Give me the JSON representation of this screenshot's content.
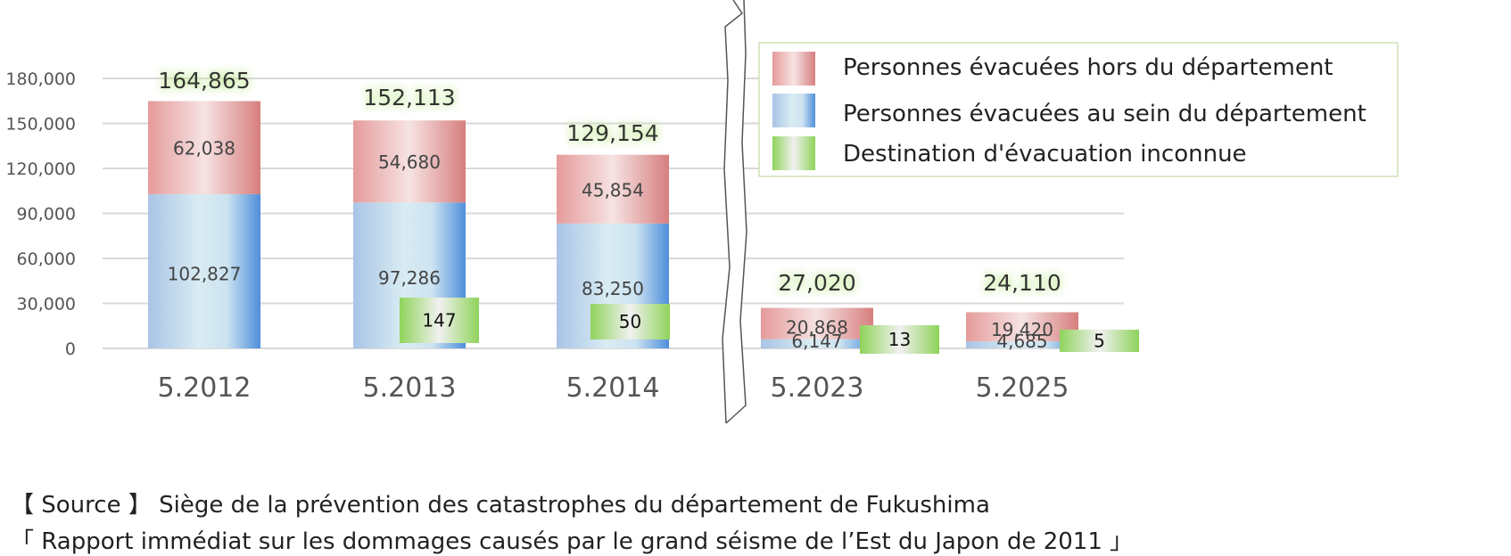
{
  "chart_data": {
    "type": "bar",
    "stacked": true,
    "categories": [
      "5.2012",
      "5.2013",
      "5.2014",
      "5.2023",
      "5.2025"
    ],
    "series": [
      {
        "name": "Personnes évacuées au sein du département",
        "values": [
          102827,
          97286,
          83250,
          6147,
          4685
        ],
        "labels": [
          "102,827",
          "97,286",
          "83,250",
          "6,147",
          "4,685"
        ],
        "color": "#6fa0dc"
      },
      {
        "name": "Personnes évacuées hors du département",
        "values": [
          62038,
          54680,
          45854,
          20868,
          19420
        ],
        "labels": [
          "62,038",
          "54,680",
          "45,854",
          "20,868",
          "19,420"
        ],
        "color": "#dc8e8e"
      },
      {
        "name": "Destination d'évacuation inconnue",
        "values": [
          null,
          147,
          50,
          13,
          5
        ],
        "labels": [
          "",
          "147",
          "50",
          "13",
          "5"
        ],
        "color": "#8fd35a"
      }
    ],
    "totals": [
      "164,865",
      "152,113",
      "129,154",
      "27,020",
      "24,110"
    ],
    "yticks": [
      "0",
      "30,000",
      "60,000",
      "90,000",
      "120,000",
      "150,000",
      "180,000"
    ],
    "ytick_values": [
      0,
      30000,
      60000,
      90000,
      120000,
      150000,
      180000
    ],
    "ylim": [
      0,
      180000
    ],
    "axis_break": "between 5.2014 and 5.2023",
    "legend_position": "top-right",
    "grid": true
  },
  "source": {
    "line1": "【 Source 】 Siège de la prévention des catastrophes du département de Fukushima",
    "line2": "「 Rapport immédiat sur les dommages causés par le grand séisme de l’Est du Japon de 2011 」"
  }
}
